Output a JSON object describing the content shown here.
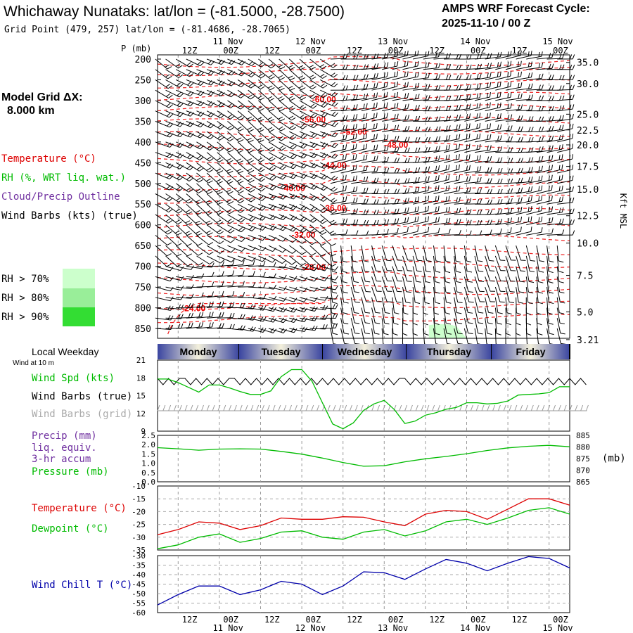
{
  "header": {
    "title": "Whichaway Nunataks:  lat/lon = (-81.5000, -28.7500)",
    "grid_point": "Grid Point (479, 257) lat/lon = (-81.4686, -28.7065)",
    "forecast_label": "AMPS WRF Forecast Cycle:",
    "forecast_cycle": "2025-11-10 / 00  Z"
  },
  "model": {
    "label": "Model Grid ΔX:",
    "value": "8.000 km"
  },
  "legend": {
    "temperature": "Temperature (°C)",
    "rh": "RH (%, WRT liq. wat.)",
    "cloud": "Cloud/Precip Outline",
    "wind": "Wind Barbs (kts) (true)",
    "rh70": "RH > 70%",
    "rh80": "RH > 80%",
    "rh90": "RH > 90%",
    "colors": {
      "rh70": "#ccffcc",
      "rh80": "#99ee99",
      "rh90": "#33dd33"
    }
  },
  "time_axis": {
    "tick_labels": [
      "12Z",
      "00Z",
      "12Z",
      "00Z",
      "12Z",
      "00Z",
      "12Z",
      "00Z",
      "12Z",
      "00Z"
    ],
    "date_labels": [
      "11 Nov",
      "12 Nov",
      "13 Nov",
      "14 Nov",
      "15 Nov"
    ]
  },
  "weekdays": {
    "title": "Local Weekday",
    "days": [
      "Monday",
      "Tuesday",
      "Wednesday",
      "Thursday",
      "Friday"
    ]
  },
  "wind10m_label": "Wind at 10 m",
  "sounding": {
    "p_label": "P (mb)",
    "right_label": "Kft MSL",
    "pressure_ticks": [
      200,
      250,
      300,
      350,
      400,
      450,
      500,
      550,
      600,
      650,
      700,
      750,
      800,
      850
    ],
    "height_ticks": [
      {
        "label": "35.0",
        "p": 208
      },
      {
        "label": "30.0",
        "p": 259
      },
      {
        "label": "25.0",
        "p": 333
      },
      {
        "label": "22.5",
        "p": 371
      },
      {
        "label": "20.0",
        "p": 407
      },
      {
        "label": "17.5",
        "p": 459
      },
      {
        "label": "15.0",
        "p": 514
      },
      {
        "label": "12.5",
        "p": 578
      },
      {
        "label": "10.0",
        "p": 644
      },
      {
        "label": "7.5",
        "p": 722
      },
      {
        "label": "5.0",
        "p": 810
      },
      {
        "label": "3.21",
        "p": 877
      }
    ],
    "isotherm_labels": [
      {
        "label": "-60.00",
        "t": 45,
        "p": 298
      },
      {
        "label": "-56.00",
        "t": 42,
        "p": 346
      },
      {
        "label": "-52.00",
        "t": 54,
        "p": 376
      },
      {
        "label": "-48.00",
        "t": 66,
        "p": 407
      },
      {
        "label": "-44.00",
        "t": 48,
        "p": 456
      },
      {
        "label": "-40.00",
        "t": 36,
        "p": 511
      },
      {
        "label": "-36.00",
        "t": 48,
        "p": 560
      },
      {
        "label": "-32.00",
        "t": 39,
        "p": 624
      },
      {
        "label": "-28.00",
        "t": 42,
        "p": 702
      },
      {
        "label": "-24.00",
        "t": 7,
        "p": 802
      }
    ]
  },
  "chart_data": [
    {
      "type": "line",
      "title": "Wind Spd (kts)",
      "labels": [
        "Wind Spd (kts)",
        "Wind Barbs (true)",
        "Wind Barbs (grid)"
      ],
      "x": [
        0,
        3,
        6,
        9,
        12,
        15,
        18,
        21,
        24,
        27,
        30,
        33,
        36,
        39,
        42,
        45,
        48,
        51,
        54,
        57,
        60,
        63,
        66,
        69,
        72,
        75,
        78,
        81,
        84,
        87,
        90,
        93,
        96,
        99,
        102,
        105,
        108,
        111,
        114,
        117,
        120
      ],
      "values": [
        17.8,
        17.8,
        17.2,
        16.4,
        15.6,
        16.8,
        16.8,
        16.3,
        15.7,
        15.2,
        15.2,
        15.8,
        18.2,
        19.4,
        19.4,
        17.4,
        13.8,
        10.2,
        9.4,
        10.4,
        12.5,
        13.6,
        14.2,
        12.6,
        10.3,
        10.7,
        11.7,
        12.1,
        12.7,
        13.0,
        13.8,
        13.8,
        13.6,
        13.7,
        14.1,
        15.1,
        15.2,
        15.3,
        15.5,
        16.5,
        16.5
      ],
      "ylim": [
        9,
        21
      ],
      "yticks": [
        9,
        12,
        15,
        18,
        21
      ]
    },
    {
      "type": "line",
      "title": "Pressure (mb)",
      "labels": [
        "Precip (mm)",
        "liq. equiv.",
        "3-hr accum",
        "Pressure (mb)"
      ],
      "precip_axis": {
        "ticks": [
          "0.0",
          "0.5",
          "1.0",
          "1.5",
          "2.0",
          "2.5"
        ],
        "ylim": [
          0,
          2.5
        ]
      },
      "pressure_axis": {
        "ticks": [
          "865",
          "870",
          "875",
          "880",
          "885"
        ],
        "ylim": [
          865,
          885
        ],
        "unit": "(mb)"
      },
      "x": [
        0,
        6,
        12,
        18,
        24,
        30,
        36,
        42,
        48,
        54,
        60,
        66,
        72,
        78,
        84,
        90,
        96,
        102,
        108,
        114,
        120
      ],
      "values": [
        879.7,
        879.2,
        878.6,
        879.1,
        879.2,
        879.1,
        878.1,
        876.9,
        875.2,
        873.3,
        871.7,
        871.9,
        873.6,
        874.9,
        875.9,
        877.1,
        878.5,
        879.6,
        880.3,
        880.7,
        880.1
      ],
      "precip_values": []
    },
    {
      "type": "line",
      "title": "Temperature / Dewpoint",
      "ylim": [
        -35,
        -10
      ],
      "yticks": [
        "-10",
        "-15",
        "-20",
        "-25",
        "-30",
        "-35"
      ],
      "x": [
        0,
        6,
        12,
        18,
        24,
        30,
        36,
        42,
        48,
        54,
        60,
        66,
        72,
        78,
        84,
        90,
        96,
        102,
        108,
        114,
        120
      ],
      "series": [
        {
          "name": "Temperature (°C)",
          "color": "#dd0000",
          "values": [
            -29,
            -27,
            -24,
            -24.5,
            -27,
            -25.5,
            -22.5,
            -23,
            -23,
            -22,
            -22.2,
            -24,
            -25.5,
            -21,
            -19.5,
            -20,
            -23,
            -19,
            -15,
            -15,
            -17.5
          ]
        },
        {
          "name": "Dewpoint (°C)",
          "color": "#00bb00",
          "values": [
            -34.5,
            -33,
            -30,
            -28.7,
            -32,
            -30.5,
            -28,
            -27.5,
            -30,
            -30.8,
            -28,
            -27,
            -29.5,
            -27.5,
            -24,
            -23,
            -25,
            -22.5,
            -19.5,
            -18.5,
            -21
          ]
        }
      ]
    },
    {
      "type": "line",
      "title": "Wind Chill T (°C)",
      "ylim": [
        -60,
        -30
      ],
      "yticks": [
        "-30",
        "-35",
        "-40",
        "-45",
        "-50",
        "-55",
        "-60"
      ],
      "x": [
        0,
        6,
        12,
        18,
        24,
        30,
        36,
        42,
        48,
        54,
        60,
        66,
        72,
        78,
        84,
        90,
        96,
        102,
        108,
        114,
        120
      ],
      "series": [
        {
          "name": "Wind Chill T (°C)",
          "color": "#0000aa",
          "values": [
            -56,
            -50.5,
            -46,
            -46,
            -50.5,
            -48,
            -43.5,
            -45,
            -50.5,
            -46,
            -38.5,
            -39,
            -42.5,
            -37,
            -32,
            -34,
            -38,
            -34,
            -30.5,
            -31.5,
            -36.5
          ]
        }
      ]
    }
  ]
}
